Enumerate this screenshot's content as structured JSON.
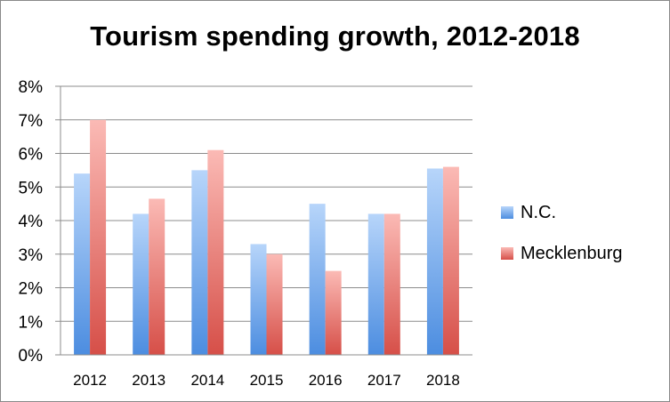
{
  "chart_data": {
    "type": "bar",
    "title": "Tourism spending growth, 2012-2018",
    "xlabel": "",
    "ylabel": "",
    "categories": [
      "2012",
      "2013",
      "2014",
      "2015",
      "2016",
      "2017",
      "2018"
    ],
    "ylim": [
      0,
      8
    ],
    "yticks": [
      "0%",
      "1%",
      "2%",
      "3%",
      "4%",
      "5%",
      "6%",
      "7%",
      "8%"
    ],
    "grid": true,
    "legend_position": "right",
    "series": [
      {
        "name": "N.C.",
        "values": [
          5.4,
          4.2,
          5.5,
          3.3,
          4.5,
          4.2,
          5.55
        ],
        "color_top": "#b7d5fa",
        "color_bottom": "#4c8de0"
      },
      {
        "name": "Mecklenburg",
        "values": [
          7.0,
          4.65,
          6.1,
          3.0,
          2.5,
          4.2,
          5.6
        ],
        "color_top": "#fbbab5",
        "color_bottom": "#d64f48"
      }
    ]
  }
}
